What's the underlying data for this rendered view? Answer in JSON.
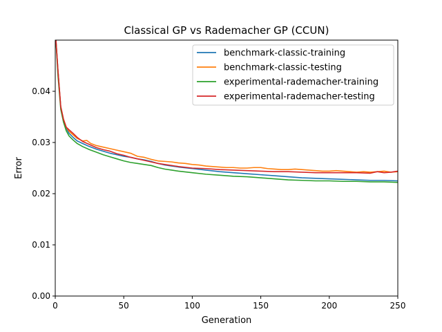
{
  "chart_data": {
    "type": "line",
    "title": "Classical GP vs Rademacher GP (CCUN)",
    "xlabel": "Generation",
    "ylabel": "Error",
    "xlim": [
      0,
      250
    ],
    "ylim": [
      0.0,
      0.05
    ],
    "xticks": [
      0,
      50,
      100,
      150,
      200,
      250
    ],
    "xtick_labels": [
      "0",
      "50",
      "100",
      "150",
      "200",
      "250"
    ],
    "yticks": [
      0.0,
      0.01,
      0.02,
      0.03,
      0.04
    ],
    "ytick_labels": [
      "0.00",
      "0.01",
      "0.02",
      "0.03",
      "0.04"
    ],
    "grid": false,
    "legend_position": "top-right",
    "series": [
      {
        "name": "benchmark-classic-training",
        "color": "#1f77b4",
        "points": [
          [
            0,
            0.052
          ],
          [
            2,
            0.044
          ],
          [
            4,
            0.037
          ],
          [
            6,
            0.0345
          ],
          [
            8,
            0.0328
          ],
          [
            10,
            0.0318
          ],
          [
            13,
            0.031
          ],
          [
            16,
            0.0303
          ],
          [
            20,
            0.0298
          ],
          [
            25,
            0.0292
          ],
          [
            30,
            0.0287
          ],
          [
            35,
            0.0283
          ],
          [
            40,
            0.0279
          ],
          [
            45,
            0.0276
          ],
          [
            50,
            0.0273
          ],
          [
            55,
            0.0271
          ],
          [
            60,
            0.0268
          ],
          [
            65,
            0.0266
          ],
          [
            70,
            0.0263
          ],
          [
            75,
            0.0259
          ],
          [
            80,
            0.0256
          ],
          [
            85,
            0.0254
          ],
          [
            90,
            0.0252
          ],
          [
            100,
            0.0249
          ],
          [
            110,
            0.0246
          ],
          [
            120,
            0.0243
          ],
          [
            130,
            0.0241
          ],
          [
            140,
            0.0239
          ],
          [
            150,
            0.0237
          ],
          [
            160,
            0.0235
          ],
          [
            170,
            0.0233
          ],
          [
            180,
            0.0231
          ],
          [
            190,
            0.023
          ],
          [
            200,
            0.0229
          ],
          [
            210,
            0.0228
          ],
          [
            220,
            0.0227
          ],
          [
            230,
            0.0226
          ],
          [
            240,
            0.0226
          ],
          [
            250,
            0.0225
          ]
        ]
      },
      {
        "name": "benchmark-classic-testing",
        "color": "#ff7f0e",
        "points": [
          [
            0,
            0.052
          ],
          [
            2,
            0.044
          ],
          [
            4,
            0.037
          ],
          [
            6,
            0.0346
          ],
          [
            8,
            0.033
          ],
          [
            10,
            0.0322
          ],
          [
            13,
            0.0315
          ],
          [
            16,
            0.0308
          ],
          [
            20,
            0.0303
          ],
          [
            23,
            0.0304
          ],
          [
            26,
            0.0298
          ],
          [
            30,
            0.0294
          ],
          [
            35,
            0.0291
          ],
          [
            40,
            0.0288
          ],
          [
            45,
            0.0285
          ],
          [
            50,
            0.0282
          ],
          [
            55,
            0.0279
          ],
          [
            60,
            0.0273
          ],
          [
            65,
            0.0271
          ],
          [
            70,
            0.0267
          ],
          [
            75,
            0.0264
          ],
          [
            80,
            0.0263
          ],
          [
            85,
            0.0262
          ],
          [
            90,
            0.026
          ],
          [
            95,
            0.0259
          ],
          [
            100,
            0.0257
          ],
          [
            105,
            0.0256
          ],
          [
            110,
            0.0254
          ],
          [
            115,
            0.0253
          ],
          [
            120,
            0.0252
          ],
          [
            125,
            0.0251
          ],
          [
            130,
            0.0251
          ],
          [
            135,
            0.025
          ],
          [
            140,
            0.025
          ],
          [
            145,
            0.0251
          ],
          [
            150,
            0.0251
          ],
          [
            155,
            0.0249
          ],
          [
            160,
            0.0248
          ],
          [
            165,
            0.0247
          ],
          [
            170,
            0.0247
          ],
          [
            175,
            0.0248
          ],
          [
            180,
            0.0247
          ],
          [
            185,
            0.0246
          ],
          [
            190,
            0.0245
          ],
          [
            195,
            0.0244
          ],
          [
            200,
            0.0244
          ],
          [
            205,
            0.0245
          ],
          [
            210,
            0.0244
          ],
          [
            215,
            0.0243
          ],
          [
            220,
            0.0242
          ],
          [
            225,
            0.0243
          ],
          [
            230,
            0.0242
          ],
          [
            235,
            0.0243
          ],
          [
            240,
            0.0244
          ],
          [
            245,
            0.0242
          ],
          [
            250,
            0.0243
          ]
        ]
      },
      {
        "name": "experimental-rademacher-training",
        "color": "#2ca02c",
        "points": [
          [
            0,
            0.052
          ],
          [
            2,
            0.043
          ],
          [
            4,
            0.0365
          ],
          [
            6,
            0.034
          ],
          [
            8,
            0.0323
          ],
          [
            10,
            0.0313
          ],
          [
            13,
            0.0305
          ],
          [
            16,
            0.0298
          ],
          [
            20,
            0.0292
          ],
          [
            25,
            0.0286
          ],
          [
            30,
            0.0281
          ],
          [
            35,
            0.0276
          ],
          [
            40,
            0.0272
          ],
          [
            45,
            0.0268
          ],
          [
            50,
            0.0264
          ],
          [
            55,
            0.0261
          ],
          [
            60,
            0.0259
          ],
          [
            65,
            0.0257
          ],
          [
            70,
            0.0255
          ],
          [
            75,
            0.0251
          ],
          [
            80,
            0.0248
          ],
          [
            85,
            0.0246
          ],
          [
            90,
            0.0244
          ],
          [
            100,
            0.0241
          ],
          [
            110,
            0.0238
          ],
          [
            120,
            0.0236
          ],
          [
            130,
            0.0234
          ],
          [
            140,
            0.0233
          ],
          [
            150,
            0.0231
          ],
          [
            160,
            0.0229
          ],
          [
            170,
            0.0227
          ],
          [
            180,
            0.0226
          ],
          [
            190,
            0.0225
          ],
          [
            200,
            0.0225
          ],
          [
            210,
            0.0224
          ],
          [
            220,
            0.0224
          ],
          [
            230,
            0.0223
          ],
          [
            240,
            0.0223
          ],
          [
            250,
            0.0222
          ]
        ]
      },
      {
        "name": "experimental-rademacher-testing",
        "color": "#d62728",
        "points": [
          [
            0,
            0.052
          ],
          [
            2,
            0.044
          ],
          [
            4,
            0.037
          ],
          [
            6,
            0.0345
          ],
          [
            8,
            0.033
          ],
          [
            10,
            0.0325
          ],
          [
            13,
            0.0318
          ],
          [
            16,
            0.031
          ],
          [
            20,
            0.0302
          ],
          [
            25,
            0.0296
          ],
          [
            30,
            0.029
          ],
          [
            35,
            0.0286
          ],
          [
            40,
            0.0283
          ],
          [
            45,
            0.0278
          ],
          [
            50,
            0.0275
          ],
          [
            55,
            0.0271
          ],
          [
            60,
            0.0268
          ],
          [
            65,
            0.0265
          ],
          [
            70,
            0.0262
          ],
          [
            75,
            0.0259
          ],
          [
            80,
            0.0257
          ],
          [
            85,
            0.0255
          ],
          [
            90,
            0.0253
          ],
          [
            100,
            0.025
          ],
          [
            110,
            0.0249
          ],
          [
            120,
            0.0247
          ],
          [
            130,
            0.0246
          ],
          [
            140,
            0.0245
          ],
          [
            150,
            0.0244
          ],
          [
            160,
            0.0243
          ],
          [
            170,
            0.0243
          ],
          [
            180,
            0.0242
          ],
          [
            190,
            0.0241
          ],
          [
            200,
            0.0241
          ],
          [
            210,
            0.0241
          ],
          [
            220,
            0.0241
          ],
          [
            230,
            0.024
          ],
          [
            235,
            0.0243
          ],
          [
            240,
            0.0241
          ],
          [
            245,
            0.0242
          ],
          [
            250,
            0.0244
          ]
        ]
      }
    ]
  }
}
